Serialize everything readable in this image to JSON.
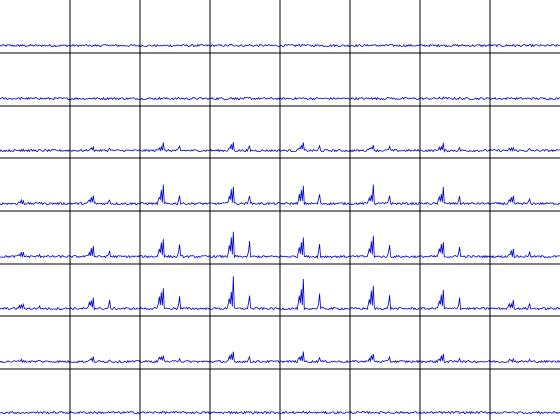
{
  "chart_data": {
    "type": "line",
    "layout": {
      "rows": 8,
      "cols": 8
    },
    "line_color": "#0000c8",
    "grid_color": "#000000",
    "background": "#ffffff",
    "grid": true,
    "title": "",
    "xlabel": "",
    "ylabel": "",
    "points_per_panel": 70,
    "baseline_noise": 0.05,
    "row_amplitude": [
      0.02,
      0.03,
      0.25,
      0.6,
      0.75,
      0.85,
      0.3,
      0.02
    ],
    "col_amplitude": [
      0.2,
      0.45,
      0.85,
      1.0,
      0.95,
      0.85,
      0.75,
      0.35
    ],
    "peaks": [
      {
        "x": 0.27,
        "rel": 0.55
      },
      {
        "x": 0.3,
        "rel": 0.8
      },
      {
        "x": 0.33,
        "rel": 1.0
      },
      {
        "x": 0.56,
        "rel": 0.7
      }
    ],
    "ylim": [
      0,
      1
    ]
  }
}
